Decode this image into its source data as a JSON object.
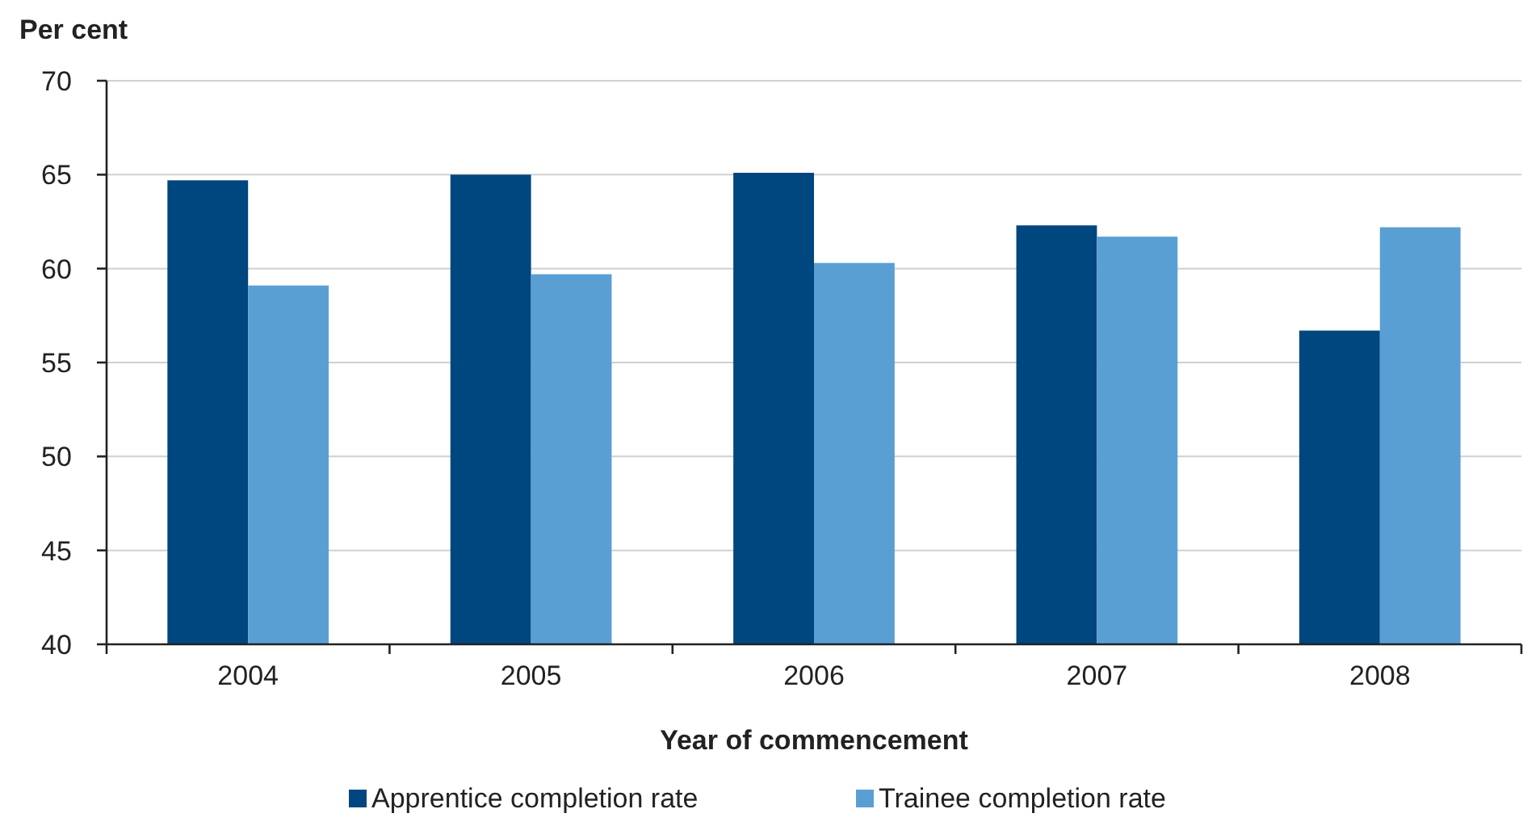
{
  "chart_data": {
    "type": "bar",
    "ylabel": "Per cent",
    "xlabel": "Year of commencement",
    "categories": [
      "2004",
      "2005",
      "2006",
      "2007",
      "2008"
    ],
    "series": [
      {
        "name": "Apprentice completion rate",
        "color": "#00467f",
        "values": [
          64.7,
          65.0,
          65.1,
          62.3,
          56.7
        ]
      },
      {
        "name": "Trainee completion rate",
        "color": "#5a9fd4",
        "values": [
          59.1,
          59.7,
          60.3,
          61.7,
          62.2
        ]
      }
    ],
    "ylim": [
      40,
      70
    ],
    "yticks": [
      40,
      45,
      50,
      55,
      60,
      65,
      70
    ],
    "grid": "y",
    "legend": "bottom"
  }
}
